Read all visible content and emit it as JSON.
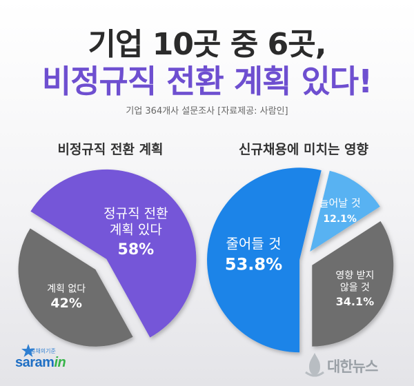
{
  "header": {
    "title_line1": "기업 10곳 중 6곳,",
    "title_line2": "비정규직 전환 계획 있다!",
    "source": "기업 364개사 설문조사 [자료제공: 사람인]"
  },
  "colors": {
    "purple": "#7556d8",
    "gray": "#6e6e6e",
    "blue": "#1f84e8",
    "light_blue": "#58b2f2",
    "title_accent": "#6e4fd0"
  },
  "chart_data": [
    {
      "type": "pie",
      "title": "비정규직 전환 계획",
      "slices": [
        {
          "label_lines": [
            "정규직 전환",
            "계획 있다"
          ],
          "value": 58,
          "value_label": "58%"
        },
        {
          "label_lines": [
            "계획 없다"
          ],
          "value": 42,
          "value_label": "42%"
        }
      ]
    },
    {
      "type": "pie",
      "title": "신규채용에 미치는 영향",
      "slices": [
        {
          "label_lines": [
            "줄어들 것"
          ],
          "value": 53.8,
          "value_label": "53.8%"
        },
        {
          "label_lines": [
            "늘어날 것"
          ],
          "value": 12.1,
          "value_label": "12.1%"
        },
        {
          "label_lines": [
            "영향 받지",
            "않을 것"
          ],
          "value": 34.1,
          "value_label": "34.1%"
        }
      ]
    }
  ],
  "logos": {
    "saramin_sub": "공채의기준",
    "saramin_main": "saram",
    "saramin_in": "in",
    "yna": "대한뉴스"
  }
}
